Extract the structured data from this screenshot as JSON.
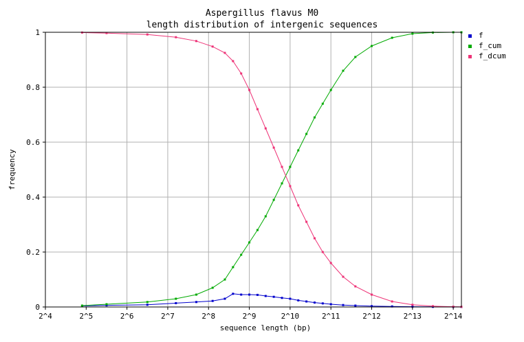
{
  "chart_data": {
    "type": "line",
    "title": "Aspergillus flavus M0",
    "subtitle": "length distribution of intergenic sequences",
    "xlabel": "sequence length (bp)",
    "ylabel": "frequency",
    "x_scale": "log2",
    "xlim_log2": [
      4,
      14.2
    ],
    "ylim": [
      0,
      1
    ],
    "x_ticks": [
      "2^4",
      "2^5",
      "2^6",
      "2^7",
      "2^8",
      "2^9",
      "2^10",
      "2^11",
      "2^12",
      "2^13",
      "2^14"
    ],
    "y_ticks": [
      "0",
      "0.2",
      "0.4",
      "0.6",
      "0.8",
      "1"
    ],
    "grid": true,
    "legend_position": "right",
    "series": [
      {
        "name": "f",
        "color": "#0000cc",
        "x_log2": [
          4.9,
          5.5,
          6.5,
          7.2,
          7.7,
          8.1,
          8.4,
          8.6,
          8.8,
          9.0,
          9.2,
          9.4,
          9.6,
          9.8,
          10.0,
          10.2,
          10.4,
          10.6,
          10.8,
          11.0,
          11.3,
          11.6,
          12.0,
          12.5,
          13.0,
          13.5,
          14.0,
          14.2
        ],
        "y": [
          0.004,
          0.006,
          0.008,
          0.014,
          0.018,
          0.022,
          0.03,
          0.048,
          0.045,
          0.045,
          0.044,
          0.04,
          0.037,
          0.033,
          0.03,
          0.024,
          0.02,
          0.016,
          0.013,
          0.01,
          0.007,
          0.005,
          0.003,
          0.002,
          0.001,
          0.0005,
          0.0002,
          0.0001
        ]
      },
      {
        "name": "f_cum",
        "color": "#00aa00",
        "x_log2": [
          4.9,
          5.5,
          6.5,
          7.2,
          7.7,
          8.1,
          8.4,
          8.6,
          8.8,
          9.0,
          9.2,
          9.4,
          9.6,
          9.8,
          10.0,
          10.2,
          10.4,
          10.6,
          10.8,
          11.0,
          11.3,
          11.6,
          12.0,
          12.5,
          13.0,
          13.5,
          14.0,
          14.2
        ],
        "y": [
          0.005,
          0.01,
          0.018,
          0.03,
          0.045,
          0.07,
          0.1,
          0.145,
          0.19,
          0.235,
          0.28,
          0.33,
          0.39,
          0.45,
          0.51,
          0.57,
          0.63,
          0.69,
          0.74,
          0.79,
          0.86,
          0.91,
          0.95,
          0.98,
          0.995,
          0.999,
          1.0,
          1.0
        ]
      },
      {
        "name": "f_dcum",
        "color": "#ee3377",
        "x_log2": [
          4.9,
          5.5,
          6.5,
          7.2,
          7.7,
          8.1,
          8.4,
          8.6,
          8.8,
          9.0,
          9.2,
          9.4,
          9.6,
          9.8,
          10.0,
          10.2,
          10.4,
          10.6,
          10.8,
          11.0,
          11.3,
          11.6,
          12.0,
          12.5,
          13.0,
          13.5,
          14.0,
          14.2
        ],
        "y": [
          0.999,
          0.997,
          0.992,
          0.982,
          0.968,
          0.948,
          0.925,
          0.895,
          0.85,
          0.79,
          0.72,
          0.65,
          0.58,
          0.51,
          0.44,
          0.37,
          0.31,
          0.25,
          0.2,
          0.16,
          0.11,
          0.075,
          0.045,
          0.02,
          0.008,
          0.003,
          0.001,
          0.0005
        ]
      }
    ]
  }
}
